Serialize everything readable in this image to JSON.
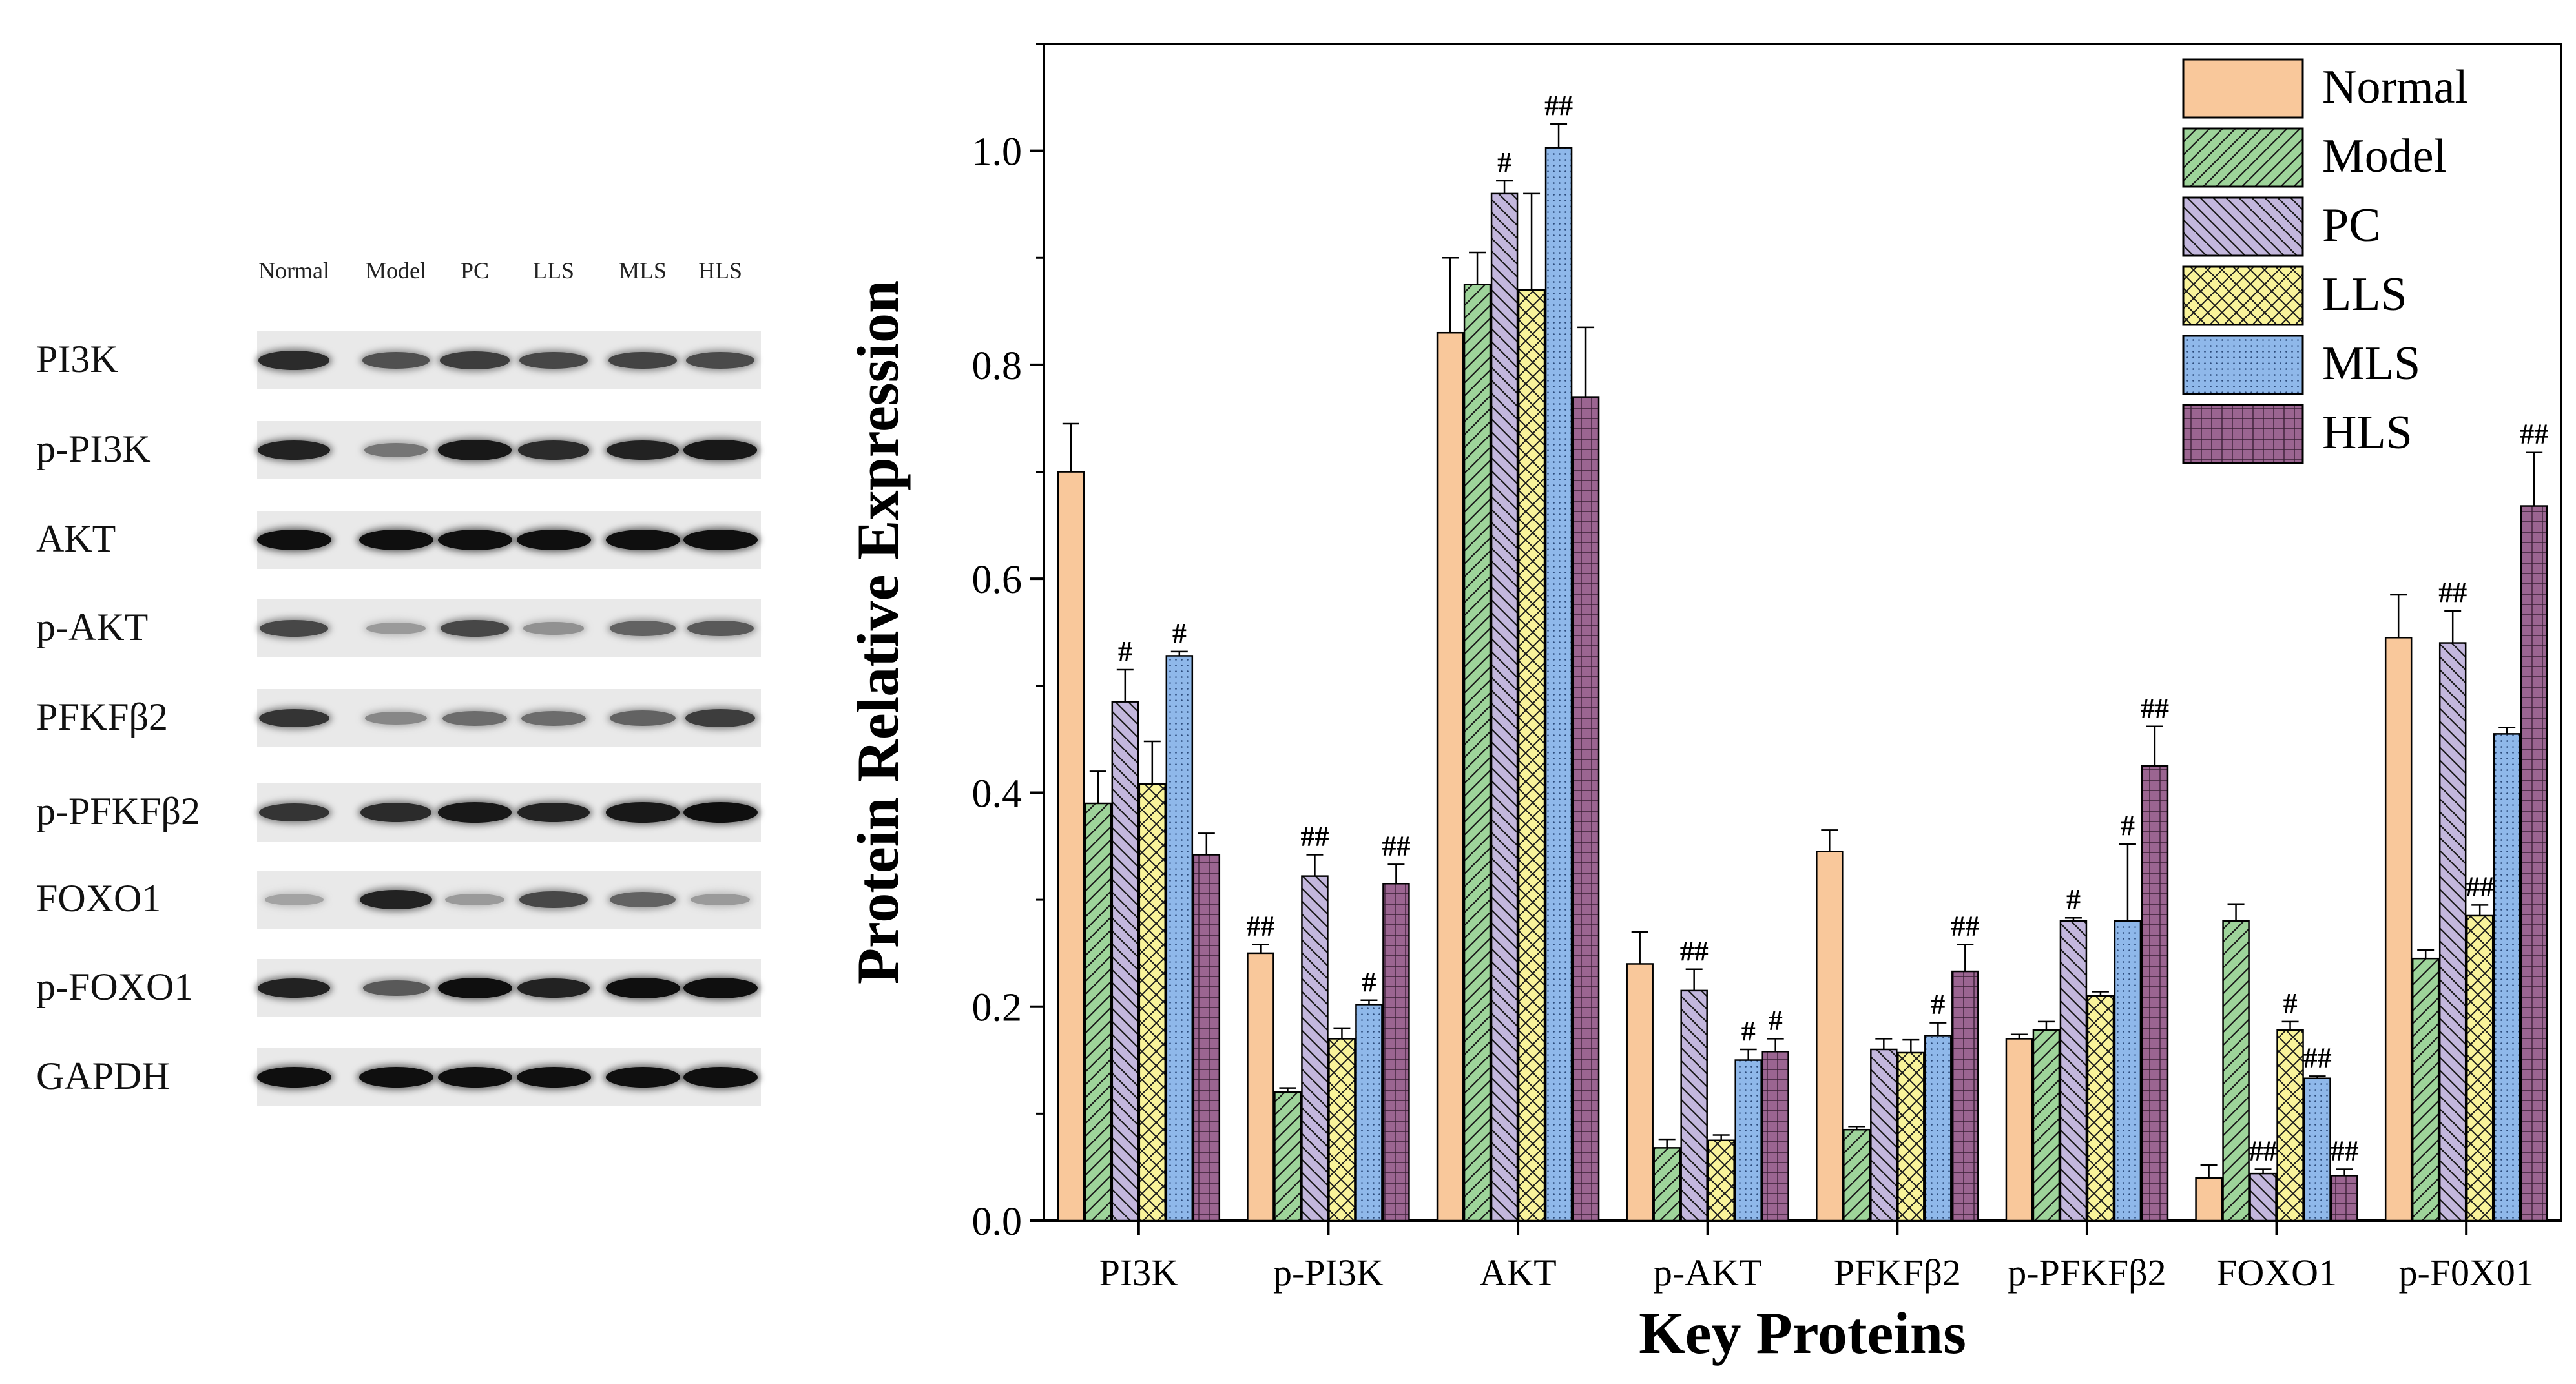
{
  "blot": {
    "lanes": [
      "Normal",
      "Model",
      "PC",
      "LLS",
      "MLS",
      "HLS"
    ],
    "rows": [
      {
        "label": "PI3K",
        "intensity": [
          0.85,
          0.65,
          0.75,
          0.7,
          0.72,
          0.68
        ]
      },
      {
        "label": "p-PI3K",
        "intensity": [
          0.9,
          0.45,
          0.95,
          0.85,
          0.9,
          0.95
        ]
      },
      {
        "label": "AKT",
        "intensity": [
          1.0,
          1.0,
          1.0,
          1.0,
          1.0,
          1.0
        ]
      },
      {
        "label": "p-AKT",
        "intensity": [
          0.7,
          0.25,
          0.7,
          0.3,
          0.55,
          0.6
        ]
      },
      {
        "label": "PFKFβ2",
        "intensity": [
          0.8,
          0.35,
          0.5,
          0.5,
          0.55,
          0.75
        ]
      },
      {
        "label": "p-PFKFβ2",
        "intensity": [
          0.8,
          0.85,
          0.95,
          0.9,
          0.95,
          1.0
        ]
      },
      {
        "label": "FOXO1",
        "intensity": [
          0.2,
          0.9,
          0.25,
          0.7,
          0.55,
          0.25
        ]
      },
      {
        "label": "p-FOXO1",
        "intensity": [
          0.9,
          0.6,
          1.0,
          0.9,
          1.0,
          1.0
        ]
      },
      {
        "label": "GAPDH",
        "intensity": [
          1.0,
          1.0,
          1.0,
          1.0,
          1.0,
          1.0
        ]
      }
    ]
  },
  "chart_data": {
    "type": "bar",
    "xlabel": "Key Proteins",
    "ylabel": "Protein Relative Expression",
    "ylim": [
      0,
      1.1
    ],
    "yticks": [
      0.0,
      0.2,
      0.4,
      0.6,
      0.8,
      1.0
    ],
    "ytick_labels": [
      "0.0",
      "0.2",
      "0.4",
      "0.6",
      "0.8",
      "1.0"
    ],
    "legend_position": "top-right",
    "categories": [
      "PI3K",
      "p-PI3K",
      "AKT",
      "p-AKT",
      "PFKFβ2",
      "p-PFKFβ2",
      "FOXO1",
      "p-F0X01"
    ],
    "series": [
      {
        "name": "Normal",
        "color": "#f9c89b",
        "pattern": "none",
        "values": [
          0.7,
          0.25,
          0.83,
          0.24,
          0.345,
          0.17,
          0.04,
          0.545
        ],
        "errors": [
          0.045,
          0.008,
          0.07,
          0.03,
          0.02,
          0.004,
          0.012,
          0.04
        ],
        "annotations": [
          "",
          "##",
          "",
          "",
          "",
          "",
          "",
          ""
        ]
      },
      {
        "name": "Model",
        "color": "#9ed49a",
        "pattern": "diag-right",
        "values": [
          0.39,
          0.12,
          0.875,
          0.068,
          0.085,
          0.178,
          0.28,
          0.245
        ],
        "errors": [
          0.03,
          0.004,
          0.03,
          0.008,
          0.003,
          0.008,
          0.016,
          0.008
        ],
        "annotations": [
          "",
          "",
          "",
          "",
          "",
          "",
          "",
          ""
        ]
      },
      {
        "name": "PC",
        "color": "#c3b7dd",
        "pattern": "diag-left",
        "values": [
          0.485,
          0.322,
          0.96,
          0.215,
          0.16,
          0.28,
          0.044,
          0.54
        ],
        "errors": [
          0.03,
          0.02,
          0.012,
          0.02,
          0.01,
          0.003,
          0.004,
          0.03
        ],
        "annotations": [
          "#",
          "##",
          "#",
          "##",
          "",
          "#",
          "##",
          "##"
        ]
      },
      {
        "name": "LLS",
        "color": "#f9f39a",
        "pattern": "cross",
        "values": [
          0.408,
          0.17,
          0.87,
          0.075,
          0.157,
          0.21,
          0.178,
          0.285
        ],
        "errors": [
          0.04,
          0.01,
          0.09,
          0.005,
          0.012,
          0.004,
          0.008,
          0.01
        ],
        "annotations": [
          "",
          "",
          "",
          "",
          "",
          "",
          "#",
          "##"
        ]
      },
      {
        "name": "MLS",
        "color": "#8fb8ea",
        "pattern": "dots",
        "values": [
          0.528,
          0.202,
          1.003,
          0.15,
          0.173,
          0.28,
          0.133,
          0.455
        ],
        "errors": [
          0.004,
          0.004,
          0.022,
          0.01,
          0.012,
          0.072,
          0.002,
          0.006
        ],
        "annotations": [
          "#",
          "#",
          "##",
          "#",
          "#",
          "#",
          "##",
          ""
        ]
      },
      {
        "name": "HLS",
        "color": "#9b6591",
        "pattern": "grid",
        "values": [
          0.342,
          0.315,
          0.77,
          0.158,
          0.233,
          0.425,
          0.042,
          0.668
        ],
        "errors": [
          0.02,
          0.018,
          0.065,
          0.012,
          0.025,
          0.037,
          0.006,
          0.05
        ],
        "annotations": [
          "",
          "##",
          "",
          "#",
          "##",
          "##",
          "##",
          "##"
        ]
      }
    ]
  }
}
